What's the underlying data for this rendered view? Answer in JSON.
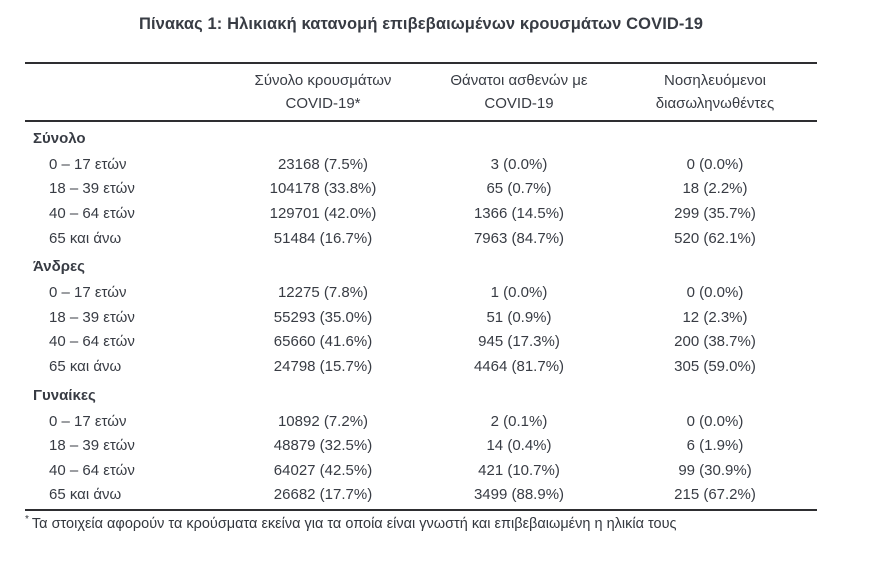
{
  "title": "Πίνακας 1: Ηλικιακή κατανομή επιβεβαιωμένων κρουσμάτων COVID-19",
  "table": {
    "columns": [
      {
        "line1": "",
        "line2": ""
      },
      {
        "line1": "Σύνολο κρουσμάτων",
        "line2": "COVID-19*"
      },
      {
        "line1": "Θάνατοι ασθενών με",
        "line2": "COVID-19"
      },
      {
        "line1": "Νοσηλευόμενοι",
        "line2": "διασωληνωθέντες"
      }
    ],
    "sections": [
      {
        "header": "Σύνολο",
        "rows": [
          {
            "label": "0 – 17 ετών",
            "cases": "23168 (7.5%)",
            "deaths": "3 (0.0%)",
            "intubated": "0 (0.0%)"
          },
          {
            "label": "18 – 39 ετών",
            "cases": "104178 (33.8%)",
            "deaths": "65 (0.7%)",
            "intubated": "18 (2.2%)"
          },
          {
            "label": "40 – 64 ετών",
            "cases": "129701 (42.0%)",
            "deaths": "1366 (14.5%)",
            "intubated": "299 (35.7%)"
          },
          {
            "label": "65 και άνω",
            "cases": "51484 (16.7%)",
            "deaths": "7963 (84.7%)",
            "intubated": "520 (62.1%)"
          }
        ]
      },
      {
        "header": "Άνδρες",
        "rows": [
          {
            "label": "0 – 17 ετών",
            "cases": "12275 (7.8%)",
            "deaths": "1 (0.0%)",
            "intubated": "0 (0.0%)"
          },
          {
            "label": "18 – 39 ετών",
            "cases": "55293 (35.0%)",
            "deaths": "51 (0.9%)",
            "intubated": "12 (2.3%)"
          },
          {
            "label": "40 – 64 ετών",
            "cases": "65660 (41.6%)",
            "deaths": "945 (17.3%)",
            "intubated": "200 (38.7%)"
          },
          {
            "label": "65 και άνω",
            "cases": "24798 (15.7%)",
            "deaths": "4464 (81.7%)",
            "intubated": "305 (59.0%)"
          }
        ]
      },
      {
        "header": "Γυναίκες",
        "rows": [
          {
            "label": "0 – 17 ετών",
            "cases": "10892 (7.2%)",
            "deaths": "2 (0.1%)",
            "intubated": "0 (0.0%)"
          },
          {
            "label": "18 – 39 ετών",
            "cases": "48879 (32.5%)",
            "deaths": "14 (0.4%)",
            "intubated": "6 (1.9%)"
          },
          {
            "label": "40 – 64 ετών",
            "cases": "64027 (42.5%)",
            "deaths": "421 (10.7%)",
            "intubated": "99 (30.9%)"
          },
          {
            "label": "65 και άνω",
            "cases": "26682 (17.7%)",
            "deaths": "3499 (88.9%)",
            "intubated": "215 (67.2%)"
          }
        ]
      }
    ]
  },
  "footnote": {
    "marker": "*",
    "text": "Τα στοιχεία αφορούν τα κρούσματα εκείνα για τα οποία είναι γνωστή και επιβεβαιωμένη η ηλικία τους"
  },
  "colors": {
    "text": "#383c44",
    "rule": "#2e2e31",
    "background": "#ffffff"
  }
}
